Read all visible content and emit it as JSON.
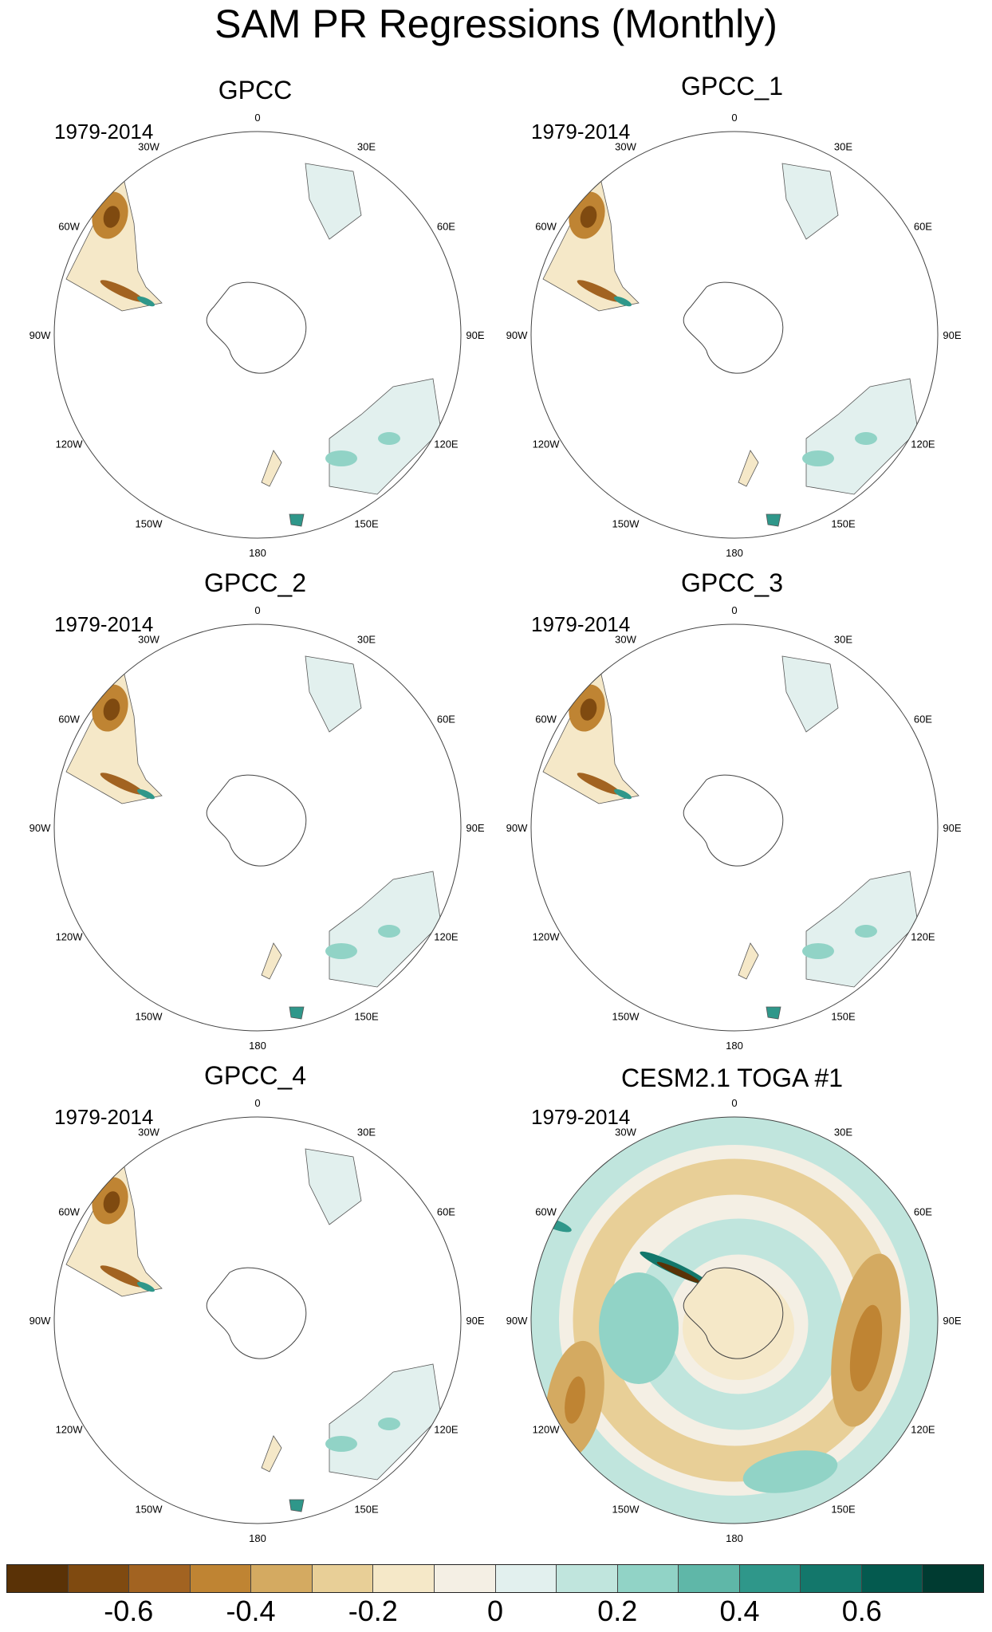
{
  "figure": {
    "title": "SAM PR Regressions (Monthly)"
  },
  "longitude_labels": [
    "0",
    "30E",
    "60E",
    "90E",
    "120E",
    "150E",
    "180",
    "150W",
    "120W",
    "90W",
    "60W",
    "30W"
  ],
  "panels": [
    {
      "title": "GPCC",
      "period": "1979-2014",
      "type": "observation"
    },
    {
      "title": "GPCC_1",
      "period": "1979-2014",
      "type": "observation"
    },
    {
      "title": "GPCC_2",
      "period": "1979-2014",
      "type": "observation"
    },
    {
      "title": "GPCC_3",
      "period": "1979-2014",
      "type": "observation"
    },
    {
      "title": "GPCC_4",
      "period": "1979-2014",
      "type": "observation"
    },
    {
      "title": "CESM2.1 TOGA #1",
      "period": "1979-2014",
      "type": "model"
    }
  ],
  "colorbar": {
    "colors": [
      "#5a3206",
      "#7f4a10",
      "#a26321",
      "#bf8433",
      "#d4aa61",
      "#e8cf97",
      "#f5e8c8",
      "#f4efe4",
      "#e2f0ee",
      "#c0e5dd",
      "#91d3c6",
      "#5fb7a8",
      "#2f978a",
      "#13776b",
      "#045a4f",
      "#003b31"
    ],
    "tick_labels": [
      "-0.6",
      "-0.4",
      "-0.2",
      "0",
      "0.2",
      "0.4",
      "0.6"
    ]
  }
}
